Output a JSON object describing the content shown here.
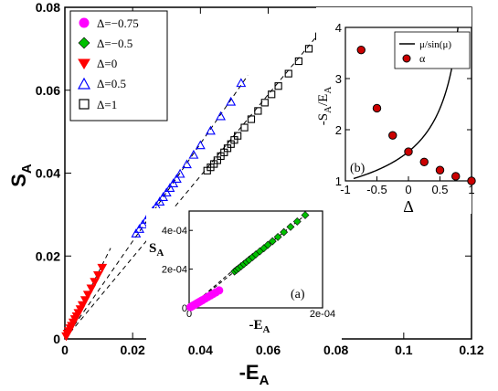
{
  "chart_data": [
    {
      "type": "scatter",
      "id": "main",
      "xlabel": "-E",
      "xlabel_sub": "A",
      "ylabel": "S",
      "ylabel_sub": "A",
      "xlim": [
        0,
        0.12
      ],
      "ylim": [
        0,
        0.08
      ],
      "xticks": [
        "0",
        "0.02",
        "0.04",
        "0.06",
        "0.08",
        "0.1",
        "0.12"
      ],
      "yticks": [
        "0",
        "0.02",
        "0.04",
        "0.06",
        "0.08"
      ],
      "legend_position": "top-left",
      "series": [
        {
          "name": "Δ=−0.75",
          "marker": "circle",
          "color": "#ff00ff",
          "filled": true,
          "x": [],
          "y": []
        },
        {
          "name": "Δ=−0.5",
          "marker": "diamond",
          "color": "#00c000",
          "filled": true,
          "x": [],
          "y": []
        },
        {
          "name": "Δ=0",
          "marker": "triangle-down",
          "color": "#ff0000",
          "filled": true,
          "x": [
            0.0004,
            0.0008,
            0.0012,
            0.0016,
            0.002,
            0.0025,
            0.003,
            0.0035,
            0.004,
            0.0046,
            0.0052,
            0.006,
            0.0068,
            0.0078,
            0.0088,
            0.0098,
            0.011
          ],
          "y": [
            0.0007,
            0.0013,
            0.0019,
            0.0026,
            0.0032,
            0.004,
            0.0048,
            0.0055,
            0.0063,
            0.0072,
            0.0082,
            0.0094,
            0.0107,
            0.0122,
            0.0138,
            0.0154,
            0.0172
          ]
        },
        {
          "name": "Δ=0.5",
          "marker": "triangle-up",
          "color": "#0000ff",
          "filled": false,
          "x": [
            0.021,
            0.022,
            0.023,
            0.024,
            0.025,
            0.026,
            0.027,
            0.028,
            0.029,
            0.03,
            0.031,
            0.032,
            0.033,
            0.034,
            0.036,
            0.038,
            0.04,
            0.043,
            0.046,
            0.049,
            0.052
          ],
          "y": [
            0.0254,
            0.0265,
            0.0276,
            0.0287,
            0.0298,
            0.0309,
            0.032,
            0.0331,
            0.0342,
            0.0353,
            0.0364,
            0.0375,
            0.0386,
            0.0398,
            0.0421,
            0.0444,
            0.0467,
            0.0502,
            0.0537,
            0.0572,
            0.0617
          ]
        },
        {
          "name": "Δ=1",
          "marker": "square",
          "color": "#000000",
          "filled": false,
          "x": [
            0.042,
            0.043,
            0.044,
            0.045,
            0.046,
            0.047,
            0.048,
            0.049,
            0.05,
            0.051,
            0.053,
            0.055,
            0.057,
            0.059,
            0.061,
            0.063,
            0.066,
            0.069,
            0.072,
            0.075,
            0.079
          ],
          "y": [
            0.0406,
            0.0414,
            0.0422,
            0.0431,
            0.0441,
            0.045,
            0.046,
            0.047,
            0.048,
            0.049,
            0.051,
            0.053,
            0.055,
            0.057,
            0.059,
            0.061,
            0.064,
            0.067,
            0.07,
            0.073,
            0.0786
          ]
        }
      ],
      "reference_lines": [
        {
          "x": [
            0,
            0.0135
          ],
          "y": [
            0,
            0.0219
          ]
        },
        {
          "x": [
            0,
            0.054
          ],
          "y": [
            0,
            0.0636
          ]
        },
        {
          "x": [
            0,
            0.08
          ],
          "y": [
            0,
            0.0786
          ]
        }
      ]
    },
    {
      "type": "scatter",
      "id": "inset_a",
      "annotation": "(a)",
      "xlabel": "-E",
      "xlabel_sub": "A",
      "ylabel": "S",
      "ylabel_sub": "A",
      "xlim": [
        0,
        0.0002
      ],
      "ylim": [
        0,
        0.0005
      ],
      "xticks": [
        "0",
        "2e-04"
      ],
      "yticks": [
        "0",
        "2e-04",
        "4e-04"
      ],
      "ytick_values": [
        0,
        0.0002,
        0.0004
      ],
      "series": [
        {
          "name": "Δ=−0.75",
          "marker": "circle",
          "color": "#ff00ff",
          "filled": true,
          "x": [
            2e-06,
            4e-06,
            6e-06,
            8e-06,
            1e-05,
            1.2e-05,
            1.4e-05,
            1.6e-05,
            1.8e-05,
            2e-05,
            2.4e-05,
            2.8e-05,
            3.2e-05,
            3.6e-05,
            4e-05,
            4.5e-05
          ],
          "y": [
            4e-06,
            8e-06,
            1.2e-05,
            1.6e-05,
            2e-05,
            2.4e-05,
            2.8e-05,
            3.2e-05,
            3.6e-05,
            4e-05,
            4.8e-05,
            5.6e-05,
            6.4e-05,
            7.2e-05,
            8e-05,
            9e-05
          ]
        },
        {
          "name": "Δ=−0.5",
          "marker": "diamond",
          "color": "#00c000",
          "filled": true,
          "x": [
            6.8e-05,
            7.1e-05,
            7.4e-05,
            7.8e-05,
            8.2e-05,
            8.6e-05,
            9e-05,
            9.5e-05,
            0.0001,
            0.000106,
            0.000112,
            0.000118,
            0.000125,
            0.000133,
            0.000142,
            0.000152,
            0.000162,
            0.000174
          ],
          "y": [
            0.000188,
            0.000196,
            0.000204,
            0.000215,
            0.000226,
            0.000237,
            0.000248,
            0.000262,
            0.000276,
            0.000292,
            0.000308,
            0.000325,
            0.000344,
            0.000366,
            0.000391,
            0.000418,
            0.000446,
            0.000479
          ]
        }
      ],
      "reference_lines": [
        {
          "x": [
            0,
            0.000174
          ],
          "y": [
            0,
            0.000479
          ]
        },
        {
          "x": [
            0,
            9.5e-05
          ],
          "y": [
            0,
            0.00028
          ]
        }
      ]
    },
    {
      "type": "line",
      "id": "inset_b",
      "annotation": "(b)",
      "xlabel": "Δ",
      "ylabel": "-S",
      "ylabel_parts": [
        "-S",
        "A",
        "/E",
        "A"
      ],
      "xlim": [
        -1,
        1
      ],
      "ylim": [
        1,
        4
      ],
      "xticks": [
        "-1",
        "-0.5",
        "0",
        "0.5",
        "1"
      ],
      "xtick_values": [
        -1,
        -0.5,
        0,
        0.5,
        1
      ],
      "yticks": [
        "1",
        "2",
        "3",
        "4"
      ],
      "ytick_values": [
        1,
        2,
        3,
        4
      ],
      "legend_position": "top-right",
      "curve_label": "μ/sin(μ)",
      "points_label": "α",
      "points": {
        "x": [
          -0.75,
          -0.5,
          -0.25,
          0,
          0.25,
          0.5,
          0.75,
          1
        ],
        "y": [
          3.56,
          2.42,
          1.89,
          1.57,
          1.37,
          1.21,
          1.09,
          1.0
        ]
      }
    }
  ]
}
